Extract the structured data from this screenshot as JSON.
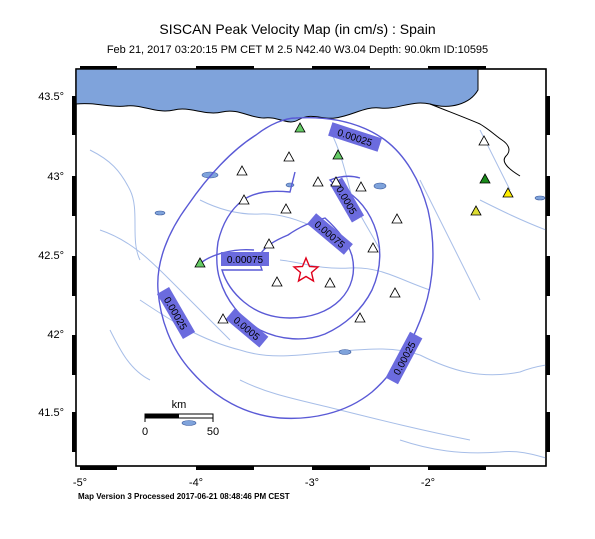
{
  "title": "SISCAN Peak Velocity Map (in cm/s) : Spain",
  "subtitle": "Feb 21, 2017 03:20:15 PM CET   M 2.5   N42.40 W3.04   Depth: 90.0km   ID:10595",
  "footer": "Map Version 3 Processed 2017-06-21 08:48:46 PM CEST",
  "y_axis_labels": [
    "43.5°",
    "43°",
    "42.5°",
    "42°",
    "41.5°"
  ],
  "x_axis_labels": [
    "-5°",
    "-4°",
    "-3°",
    "-2°"
  ],
  "contour_labels": [
    "0.00025",
    "0.0005",
    "0.00075",
    "0.00075",
    "0.0005",
    "0.00025",
    "0.00025"
  ],
  "scale_bar": {
    "unit": "km",
    "min": "0",
    "max": "50"
  },
  "epicenter": {
    "lat": 42.4,
    "lon": -3.04
  },
  "colors": {
    "sea": "#7fa3db",
    "contour": "#5a5ad6",
    "label_bg": "#6b6bde",
    "river": "#a7bee8",
    "epicenter": "#e0001b"
  }
}
